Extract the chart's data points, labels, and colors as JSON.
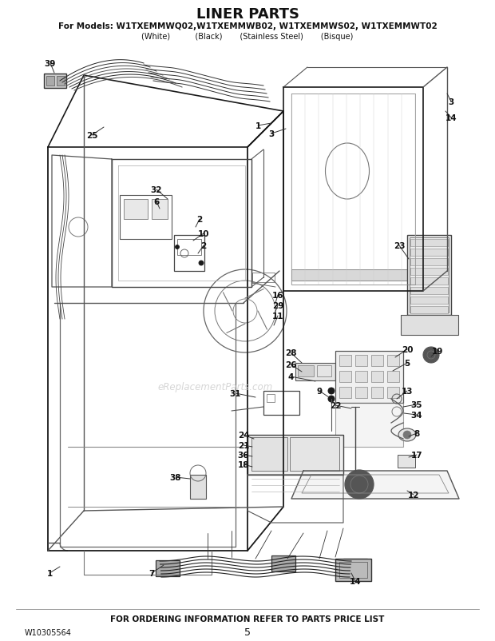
{
  "title": "LINER PARTS",
  "subtitle": "For Models: W1TXEMMWQ02,W1TXEMMWB02, W1TXEMMWS02, W1TXEMMWT02",
  "subtitle2": "(White)          (Black)       (Stainless Steel)       (Bisque)",
  "footer_text": "FOR ORDERING INFORMATION REFER TO PARTS PRICE LIST",
  "doc_number": "W10305564",
  "page_number": "5",
  "background_color": "#ffffff",
  "line_color": "#1a1a1a",
  "text_color": "#111111",
  "watermark": "eReplacementParts.com"
}
